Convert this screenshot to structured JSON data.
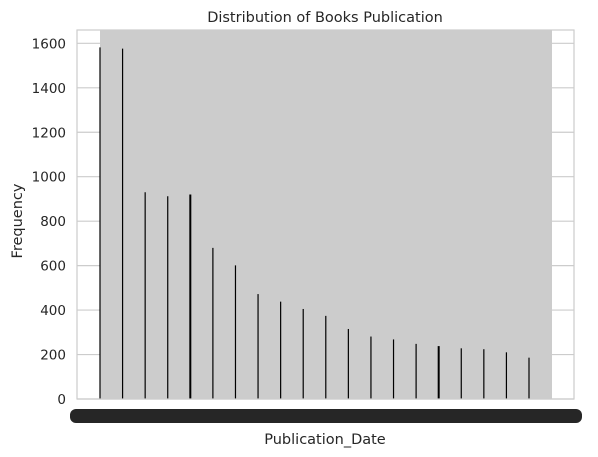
{
  "chart_data": {
    "type": "bar",
    "title": "Distribution of Books Publication",
    "xlabel": "Publication_Date",
    "ylabel": "Frequency",
    "ylim": [
      0,
      1660
    ],
    "yticks": [
      0,
      200,
      400,
      600,
      800,
      1000,
      1200,
      1400,
      1600
    ],
    "grid": true,
    "colors": {
      "background": "#ffffff",
      "fill": "#cccccc",
      "edge": "#000000",
      "grid": "#cccccc",
      "spine": "#cccccc",
      "text": "#262626"
    },
    "values": [
      1582,
      1576,
      930,
      912,
      920,
      680,
      601,
      472,
      438,
      405,
      374,
      315,
      281,
      268,
      248,
      238,
      228,
      224,
      210,
      186
    ]
  }
}
